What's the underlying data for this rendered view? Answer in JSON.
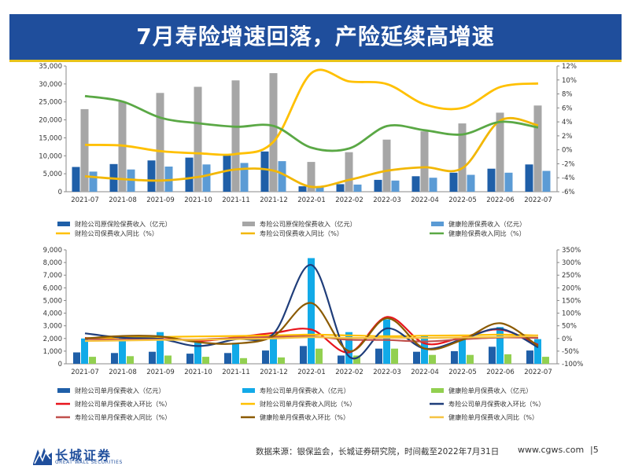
{
  "page": {
    "title": "7月寿险增速回落，产险延续高增速",
    "source": "数据来源：银保监会，长城证券研究院，时间截至2022年7月31日",
    "website": "www.cgws.com",
    "page_number": "|5",
    "logo_cn": "长城证券",
    "logo_en": "GREAT WALL SECURITIES",
    "colors": {
      "header": "#1f4e9c",
      "accent": "#e8c31a"
    }
  },
  "chart_data": [
    {
      "type": "bar",
      "categories": [
        "2021-07",
        "2021-08",
        "2021-09",
        "2021-10",
        "2021-11",
        "2021-12",
        "2022-01",
        "2022-02",
        "2022-03",
        "2022-04",
        "2022-05",
        "2022-06",
        "2022-07"
      ],
      "y_ticks": [
        "0",
        "5,000",
        "10,000",
        "15,000",
        "20,000",
        "25,000",
        "30,000",
        "35,000"
      ],
      "ylim": [
        0,
        35000
      ],
      "y2_ticks": [
        "-6%",
        "-4%",
        "-2%",
        "0%",
        "2%",
        "4%",
        "6%",
        "8%",
        "10%",
        "12%"
      ],
      "y2lim": [
        -6,
        12
      ],
      "series": [
        {
          "name": "财险公司原保险保费收入（亿元）",
          "kind": "bar",
          "axis": "left",
          "color": "#1f5fa8",
          "values": [
            6900,
            7700,
            8700,
            9500,
            10300,
            11200,
            1500,
            2100,
            3300,
            4300,
            5300,
            6400,
            7600
          ]
        },
        {
          "name": "寿险公司原保险保费收入（亿元）",
          "kind": "bar",
          "axis": "left",
          "color": "#a6a6a6",
          "values": [
            23000,
            25000,
            27500,
            29200,
            31000,
            33000,
            8300,
            11000,
            14500,
            16800,
            19000,
            22000,
            24000
          ]
        },
        {
          "name": "健康险原保费收入（亿元）",
          "kind": "bar",
          "axis": "left",
          "color": "#5b9bd5",
          "values": [
            5600,
            6200,
            7000,
            7600,
            8000,
            8500,
            1300,
            2000,
            3100,
            3900,
            4700,
            5300,
            5800
          ]
        },
        {
          "name": "财险公司保费收入同比（%）",
          "kind": "line",
          "axis": "right",
          "color": "#ffc000",
          "values": [
            0.7,
            0.6,
            -0.2,
            -0.5,
            -0.6,
            1.2,
            11.0,
            9.8,
            9.4,
            6.5,
            6.0,
            9.0,
            9.5
          ]
        },
        {
          "name": "寿险公司保费收入同比（%）",
          "kind": "line",
          "axis": "right",
          "color": "#f2b705",
          "values": [
            -3.8,
            -4.2,
            -4.4,
            -3.9,
            -2.8,
            -3.0,
            -5.3,
            -4.3,
            -3.0,
            -2.5,
            -2.6,
            4.2,
            3.5
          ]
        },
        {
          "name": "健康险保费收入同比（%）",
          "kind": "line",
          "axis": "right",
          "color": "#5aa845",
          "values": [
            7.7,
            6.9,
            4.6,
            3.8,
            3.3,
            3.4,
            0.3,
            0.2,
            3.4,
            2.8,
            2.2,
            4.0,
            3.2
          ]
        }
      ]
    },
    {
      "type": "bar",
      "categories": [
        "2021-07",
        "2021-08",
        "2021-09",
        "2021-10",
        "2021-11",
        "2021-12",
        "2022-01",
        "2022-02",
        "2022-03",
        "2022-04",
        "2022-05",
        "2022-06",
        "2022-07"
      ],
      "y_ticks": [
        "0",
        "1,000",
        "2,000",
        "3,000",
        "4,000",
        "5,000",
        "6,000",
        "7,000",
        "8,000",
        "9,000"
      ],
      "ylim": [
        0,
        9000
      ],
      "y2_ticks": [
        "-100%",
        "-50%",
        "0%",
        "50%",
        "100%",
        "150%",
        "200%",
        "250%",
        "300%",
        "350%"
      ],
      "y2lim": [
        -100,
        350
      ],
      "series": [
        {
          "name": "财险公司单月保费收入（亿元）",
          "kind": "bar",
          "axis": "left",
          "color": "#1f5fa8",
          "values": [
            900,
            850,
            950,
            800,
            850,
            1050,
            1400,
            650,
            1200,
            950,
            1000,
            1350,
            1050
          ]
        },
        {
          "name": "寿险公司单月保费收入（亿元）",
          "kind": "bar",
          "axis": "left",
          "color": "#12aae8",
          "values": [
            2000,
            2050,
            2500,
            1700,
            1650,
            2000,
            8350,
            2500,
            3500,
            2200,
            2100,
            2900,
            1950
          ]
        },
        {
          "name": "健康险单月保费收入（亿元）",
          "kind": "bar",
          "axis": "left",
          "color": "#92d050",
          "values": [
            550,
            600,
            650,
            550,
            450,
            500,
            1200,
            650,
            1200,
            700,
            700,
            750,
            550
          ]
        },
        {
          "name": "财险公司单月保费收入环比（%）",
          "kind": "line",
          "axis": "right",
          "color": "#e8141c",
          "values": [
            2,
            -5,
            5,
            -10,
            5,
            22,
            35,
            -55,
            85,
            -20,
            5,
            35,
            -25
          ]
        },
        {
          "name": "财险公司单月保费收入同比（%）",
          "kind": "line",
          "axis": "right",
          "color": "#ffc000",
          "values": [
            -2,
            4,
            6,
            8,
            10,
            12,
            15,
            12,
            9,
            11,
            12,
            15,
            12
          ]
        },
        {
          "name": "寿险公司单月保费收入环比（%）",
          "kind": "line",
          "axis": "right",
          "color": "#1f3d7a",
          "values": [
            20,
            3,
            -2,
            -30,
            -3,
            20,
            290,
            -72,
            40,
            -40,
            -3,
            38,
            -35
          ]
        },
        {
          "name": "寿险公司单月保费收入同比（%）",
          "kind": "line",
          "axis": "right",
          "color": "#c0504d",
          "values": [
            -2,
            -5,
            -4,
            -4,
            2,
            6,
            8,
            -5,
            -6,
            -12,
            -3,
            4,
            2
          ]
        },
        {
          "name": "健康险单月保费收入环比（%）",
          "kind": "line",
          "axis": "right",
          "color": "#8b5a00",
          "values": [
            0,
            10,
            8,
            -15,
            -20,
            10,
            140,
            -50,
            80,
            -40,
            -5,
            60,
            -30
          ]
        },
        {
          "name": "健康险单月保费收入同比（%）",
          "kind": "line",
          "axis": "right",
          "color": "#f6c342",
          "values": [
            -10,
            -8,
            -6,
            -5,
            -3,
            0,
            5,
            2,
            3,
            2,
            4,
            6,
            10
          ]
        }
      ]
    }
  ]
}
